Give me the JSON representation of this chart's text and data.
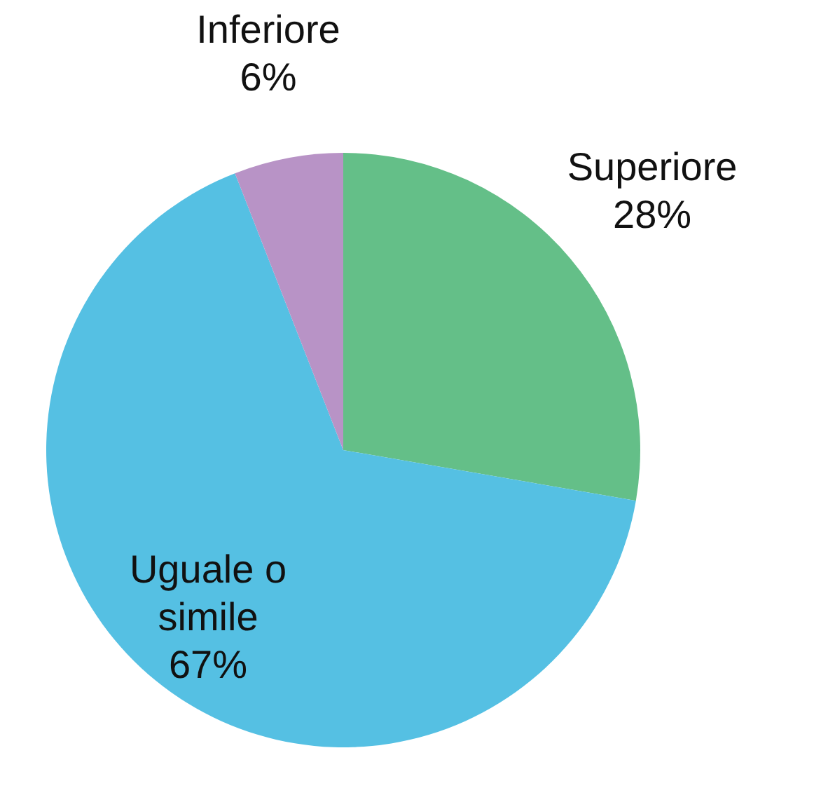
{
  "chart_data": {
    "type": "pie",
    "categories": [
      "Superiore",
      "Uguale o simile",
      "Inferiore"
    ],
    "values": [
      28,
      67,
      6
    ],
    "colors": [
      "#64bf88",
      "#55c0e3",
      "#b893c6"
    ],
    "value_labels": [
      "28%",
      "67%",
      "6%"
    ]
  }
}
